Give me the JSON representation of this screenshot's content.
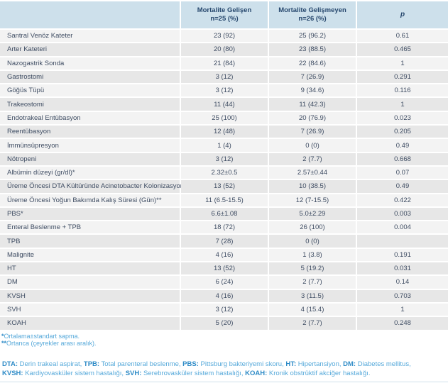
{
  "colors": {
    "header-bg": "#cde0eb",
    "header-text": "#27486e",
    "row-odd": "#f3f3f3",
    "row-even": "#e7e7e7",
    "cell-text": "#3f4d63",
    "note-text": "#56a9da",
    "note-bold": "#2e8bc7",
    "line": "#cfe0ea"
  },
  "chart_data": {
    "type": "table",
    "columns": [
      {
        "label": "",
        "sub": ""
      },
      {
        "label": "Mortalite Gelişen",
        "sub": "n=25 (%)"
      },
      {
        "label": "Mortalite Gelişmeyen",
        "sub": "n=26 (%)"
      },
      {
        "label": "p",
        "sub": ""
      }
    ],
    "rows": [
      {
        "label": "Santral Venöz Kateter",
        "c1": "23 (92)",
        "c2": "25 (96.2)",
        "p": "0.61"
      },
      {
        "label": "Arter Kateteri",
        "c1": "20 (80)",
        "c2": "23 (88.5)",
        "p": "0.465"
      },
      {
        "label": "Nazogastrik Sonda",
        "c1": "21 (84)",
        "c2": "22 (84.6)",
        "p": "1"
      },
      {
        "label": "Gastrostomi",
        "c1": "3 (12)",
        "c2": "7 (26.9)",
        "p": "0.291"
      },
      {
        "label": "Göğüs Tüpü",
        "c1": "3 (12)",
        "c2": "9 (34.6)",
        "p": "0.116"
      },
      {
        "label": "Trakeostomi",
        "c1": "11 (44)",
        "c2": "11 (42.3)",
        "p": "1"
      },
      {
        "label": "Endotrakeal Entübasyon",
        "c1": "25 (100)",
        "c2": "20 (76.9)",
        "p": "0.023"
      },
      {
        "label": "Reentübasyon",
        "c1": "12 (48)",
        "c2": "7 (26.9)",
        "p": "0.205"
      },
      {
        "label": "İmmünsüpresyon",
        "c1": "1 (4)",
        "c2": "0 (0)",
        "p": "0.49"
      },
      {
        "label": "Nötropeni",
        "c1": "3 (12)",
        "c2": "2 (7.7)",
        "p": "0.668"
      },
      {
        "label": "Albümin düzeyi (gr/dl)*",
        "c1": "2.32±0.5",
        "c2": "2.57±0.44",
        "p": "0.07"
      },
      {
        "label": "Üreme Öncesi DTA Kültüründe Acinetobacter Kolonizasyonu",
        "c1": "13 (52)",
        "c2": "10 (38.5)",
        "p": "0.49"
      },
      {
        "label": "Üreme Öncesi Yoğun Bakımda Kalış Süresi (Gün)**",
        "c1": "11 (6.5-15.5)",
        "c2": "12 (7-15.5)",
        "p": "0.422"
      },
      {
        "label": "PBS*",
        "c1": "6.6±1.08",
        "c2": "5.0±2.29",
        "p": "0.003"
      },
      {
        "label": "Enteral Beslenme + TPB",
        "c1": "18 (72)",
        "c2": "26 (100)",
        "p": "0.004"
      },
      {
        "label": "TPB",
        "c1": "7 (28)",
        "c2": "0 (0)",
        "p": ""
      },
      {
        "label": "Malignite",
        "c1": "4 (16)",
        "c2": "1 (3.8)",
        "p": "0.191"
      },
      {
        "label": "HT",
        "c1": "13 (52)",
        "c2": "5 (19.2)",
        "p": "0.031"
      },
      {
        "label": "DM",
        "c1": "6 (24)",
        "c2": "2 (7.7)",
        "p": "0.14"
      },
      {
        "label": "KVSH",
        "c1": "4 (16)",
        "c2": "3 (11.5)",
        "p": "0.703"
      },
      {
        "label": "SVH",
        "c1": "3 (12)",
        "c2": "4 (15.4)",
        "p": "1"
      },
      {
        "label": "KOAH",
        "c1": "5 (20)",
        "c2": "2 (7.7)",
        "p": "0.248"
      }
    ]
  },
  "footnotes": [
    {
      "marker": "*",
      "text": "Ortalama±standart sapma."
    },
    {
      "marker": "**",
      "text": "Ortanca (çeyrekler arası aralık)."
    }
  ],
  "abbreviations": [
    {
      "term": "DTA:",
      "def": " Derin trakeal aspirat, "
    },
    {
      "term": "TPB:",
      "def": " Total parenteral beslenme, "
    },
    {
      "term": "PBS:",
      "def": " Pittsburg bakteriyemi skoru, "
    },
    {
      "term": "HT:",
      "def": " Hipertansiyon, "
    },
    {
      "term": "DM:",
      "def": " Diabetes mellitus, "
    },
    {
      "term": "KVSH:",
      "def": " Kardiyovasküler sistem hastalığı, "
    },
    {
      "term": "SVH:",
      "def": " Serebrovasküler sistem hastalığı, "
    },
    {
      "term": "KOAH:",
      "def": " Kronik obstrüktif akciğer hastalığı."
    }
  ]
}
